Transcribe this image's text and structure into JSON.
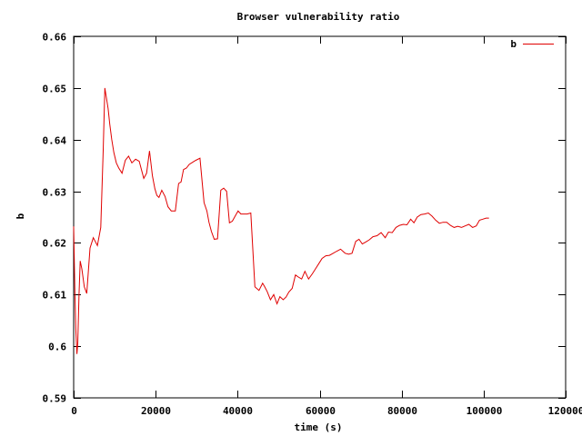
{
  "chart_data": {
    "type": "line",
    "title": "Browser vulnerability ratio",
    "xlabel": "time (s)",
    "ylabel": "b",
    "xlim": [
      0,
      120000
    ],
    "ylim": [
      0.59,
      0.66
    ],
    "x_ticks": [
      0,
      20000,
      40000,
      60000,
      80000,
      100000,
      120000
    ],
    "x_tick_labels": [
      "0",
      "20000",
      "40000",
      "60000",
      "80000",
      "100000",
      "120000"
    ],
    "y_ticks": [
      0.59,
      0.6,
      0.61,
      0.62,
      0.63,
      0.64,
      0.65,
      0.66
    ],
    "y_tick_labels": [
      "0.59",
      "0.6",
      "0.61",
      "0.62",
      "0.63",
      "0.64",
      "0.65",
      "0.66"
    ],
    "grid": false,
    "legend_position": "top-right",
    "colors": {
      "series": "#e00000"
    },
    "series": [
      {
        "name": "b",
        "x": [
          0,
          300,
          500,
          800,
          1000,
          1300,
          1600,
          2000,
          2600,
          3200,
          4000,
          4800,
          5800,
          6600,
          7200,
          7600,
          8000,
          8400,
          8800,
          9300,
          9800,
          10400,
          11000,
          11800,
          12600,
          13400,
          14200,
          15100,
          16000,
          17100,
          17800,
          18500,
          19200,
          19800,
          20300,
          20800,
          21500,
          22300,
          23000,
          23800,
          24800,
          25600,
          26200,
          26800,
          27500,
          28200,
          29000,
          29800,
          30800,
          31800,
          32500,
          33000,
          33600,
          34300,
          35100,
          35900,
          36600,
          37300,
          38000,
          38700,
          39400,
          40100,
          40800,
          41500,
          42300,
          43200,
          44200,
          45200,
          46100,
          46600,
          47200,
          48000,
          48800,
          49600,
          50300,
          51100,
          51800,
          52500,
          53300,
          54100,
          54800,
          55600,
          56400,
          57300,
          58200,
          59000,
          59800,
          60600,
          61500,
          62400,
          63300,
          64200,
          65100,
          66200,
          67100,
          67900,
          68800,
          69600,
          70400,
          71300,
          72100,
          73000,
          74000,
          75000,
          76000,
          76800,
          77700,
          78600,
          79500,
          80400,
          81300,
          82200,
          83000,
          83800,
          84700,
          85600,
          86500,
          87400,
          88300,
          89200,
          90100,
          91000,
          91900,
          92800,
          93700,
          94600,
          95500,
          96400,
          97300,
          98200,
          99000,
          99800,
          100600,
          101300
        ],
        "y": [
          0.6232,
          0.61,
          0.6035,
          0.5985,
          0.6005,
          0.61,
          0.6165,
          0.615,
          0.6115,
          0.6102,
          0.619,
          0.621,
          0.6195,
          0.623,
          0.638,
          0.65,
          0.648,
          0.646,
          0.643,
          0.64,
          0.6375,
          0.6355,
          0.6345,
          0.6335,
          0.636,
          0.6368,
          0.6355,
          0.6362,
          0.6358,
          0.6325,
          0.6335,
          0.6378,
          0.633,
          0.6305,
          0.6292,
          0.6288,
          0.6302,
          0.629,
          0.627,
          0.6262,
          0.6262,
          0.6315,
          0.6318,
          0.6342,
          0.6345,
          0.6352,
          0.6356,
          0.636,
          0.6364,
          0.6278,
          0.6262,
          0.624,
          0.6222,
          0.6207,
          0.6208,
          0.6302,
          0.6306,
          0.63,
          0.6239,
          0.6242,
          0.6252,
          0.6262,
          0.6256,
          0.6256,
          0.6256,
          0.6258,
          0.6115,
          0.6108,
          0.6122,
          0.6115,
          0.6106,
          0.609,
          0.61,
          0.6082,
          0.6096,
          0.609,
          0.6095,
          0.6105,
          0.6112,
          0.6138,
          0.6134,
          0.613,
          0.6145,
          0.613,
          0.614,
          0.615,
          0.616,
          0.617,
          0.6175,
          0.6176,
          0.618,
          0.6184,
          0.6188,
          0.618,
          0.6178,
          0.618,
          0.6203,
          0.6207,
          0.6198,
          0.6202,
          0.6206,
          0.6212,
          0.6214,
          0.622,
          0.621,
          0.6221,
          0.622,
          0.623,
          0.6234,
          0.6236,
          0.6235,
          0.6246,
          0.6239,
          0.625,
          0.6255,
          0.6256,
          0.6258,
          0.6252,
          0.6244,
          0.6238,
          0.624,
          0.624,
          0.6234,
          0.623,
          0.6232,
          0.623,
          0.6233,
          0.6236,
          0.623,
          0.6233,
          0.6244,
          0.6246,
          0.6248,
          0.6248
        ]
      }
    ]
  }
}
